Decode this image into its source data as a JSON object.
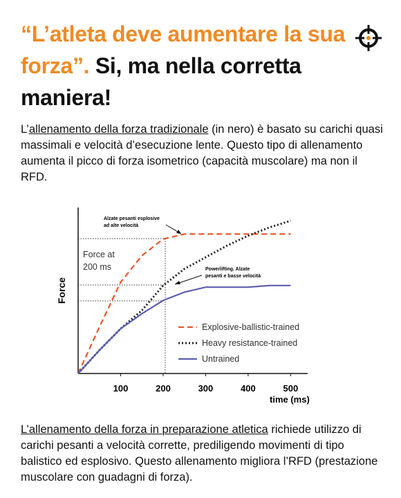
{
  "header": {
    "title_orange": "“L’atleta deve aumentare la sua forza”.",
    "title_black": " Si, ma nella corretta maniera!"
  },
  "paragraph1": [
    "L’",
    "allenamento della forza tradizionale",
    " (in nero) è basato su carichi quasi massimali e velocità d’esecuzione lente. Questo tipo di allenamento aumenta il picco di forza isometrico (capacità muscolare) ma non il RFD."
  ],
  "chart_data": {
    "type": "line",
    "x": [
      0,
      50,
      100,
      150,
      200,
      250,
      300,
      350,
      400,
      450,
      500
    ],
    "series": [
      {
        "name": "Explosive-ballistic-trained",
        "color": "#e8562a",
        "style": "dashed",
        "values": [
          0,
          28,
          55,
          71,
          81,
          84,
          84,
          84,
          84,
          84,
          84
        ]
      },
      {
        "name": "Heavy resistance-trained",
        "color": "#222222",
        "style": "dotted",
        "values": [
          0,
          14,
          27,
          38,
          53,
          63,
          70,
          77,
          83,
          88,
          92
        ]
      },
      {
        "name": "Untrained",
        "color": "#5a5fb0",
        "style": "solid",
        "values": [
          0,
          14,
          27,
          36,
          44,
          49,
          52,
          52,
          52,
          53,
          53
        ]
      }
    ],
    "xlim": [
      0,
      540
    ],
    "xticks": [
      100,
      200,
      300,
      400,
      500
    ],
    "ylim": [
      0,
      100
    ],
    "xlabel": "time (ms)",
    "ylabel": "Force",
    "annotations": [
      "Alzate pesanti esplosive",
      "ad alte velocità",
      "Powerlifting. Alzate",
      "pesanti e basse velocità",
      "Force at",
      "200 ms"
    ]
  },
  "paragraph2": [
    "L’allenamento della forza in preparazione atletica",
    " richiede utilizzo di carichi pesanti a velocità corrette, prediligendo movimenti di tipo balistico ed esplosivo. Questo allenamento migliora l’RFD (prestazione muscolare con guadagni di forza)."
  ]
}
